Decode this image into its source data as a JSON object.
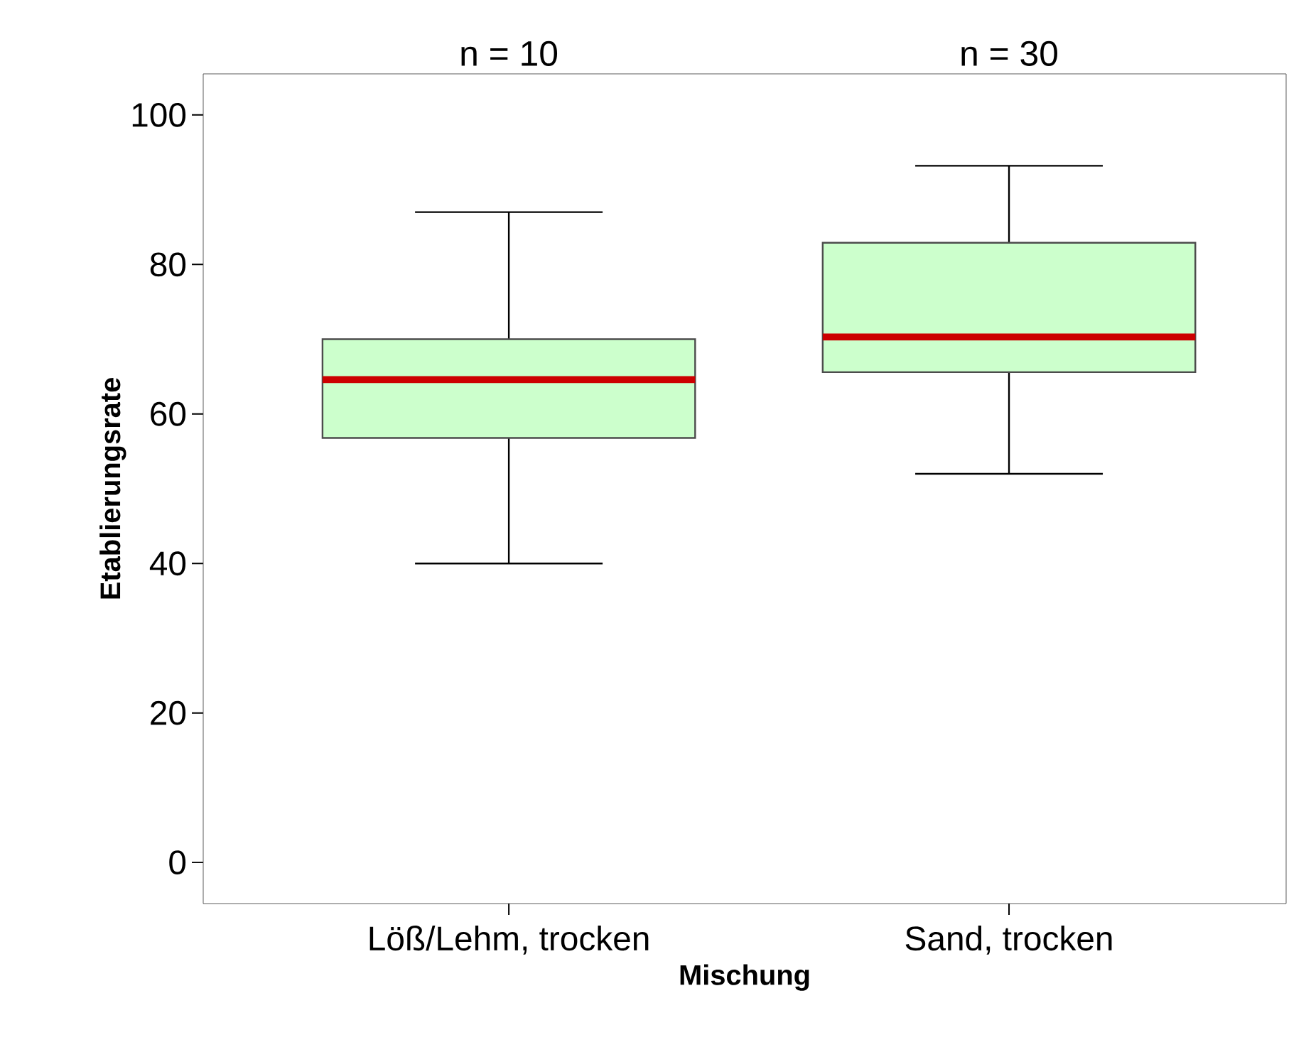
{
  "chart_data": {
    "type": "box",
    "xlabel": "Mischung",
    "ylabel": "Etablierungsrate",
    "categories": [
      "Löß/Lehm, trocken",
      "Sand, trocken"
    ],
    "boxes": [
      {
        "low": 40,
        "q1": 56.8,
        "median": 64.6,
        "q3": 70,
        "high": 87
      },
      {
        "low": 52,
        "q1": 65.6,
        "median": 70.3,
        "q3": 82.9,
        "high": 93.2
      }
    ],
    "color": "#ccffcc",
    "ylim": [
      -5.5,
      105.5
    ],
    "yticks": [
      0,
      20,
      40,
      60,
      80,
      100
    ],
    "grid": false,
    "annotations": [
      "n = 10",
      "n = 30"
    ]
  }
}
